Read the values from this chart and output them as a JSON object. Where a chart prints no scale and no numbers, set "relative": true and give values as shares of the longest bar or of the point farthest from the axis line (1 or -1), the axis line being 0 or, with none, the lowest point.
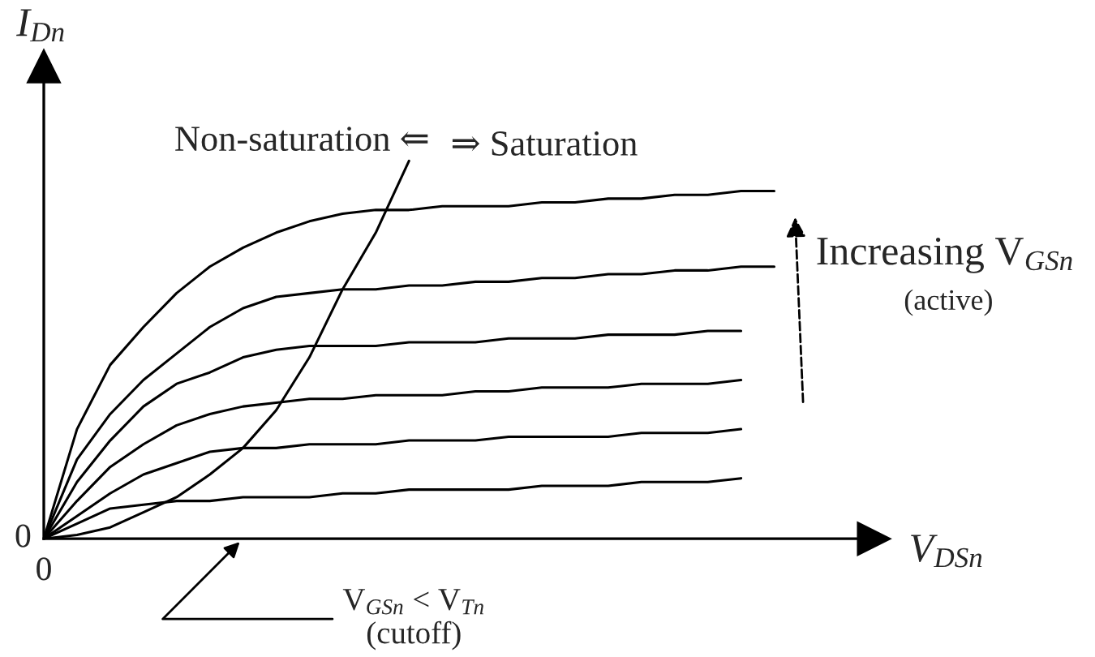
{
  "chart_data": {
    "type": "line",
    "relative": true,
    "xlabel": "V$_{DSn}$",
    "ylabel": "I$_{Dn}$",
    "legend": false,
    "marker": "none",
    "line_style": "solid",
    "categories": [
      null,
      null,
      null,
      null,
      null,
      null,
      null,
      null,
      null,
      null,
      null,
      null,
      null,
      null,
      null,
      null,
      null,
      null,
      null,
      null,
      null,
      null,
      null
    ],
    "series": [
      {
        "color": "#000000",
        "values": [
          0,
          0.29,
          0.46,
          0.56,
          0.65,
          0.72,
          0.77,
          0.81,
          0.84,
          0.86,
          0.87,
          0.87,
          0.88,
          0.88,
          0.88,
          0.89,
          0.89,
          0.9,
          0.9,
          0.91,
          0.91,
          0.92,
          0.92
        ]
      },
      {
        "color": "#000000",
        "values": [
          0,
          0.21,
          0.33,
          0.42,
          0.49,
          0.56,
          0.61,
          0.64,
          0.65,
          0.66,
          0.66,
          0.67,
          0.67,
          0.68,
          0.68,
          0.69,
          0.69,
          0.7,
          0.7,
          0.71,
          0.71,
          0.72,
          0.72
        ]
      },
      {
        "color": "#000000",
        "values": [
          0,
          0.15,
          0.26,
          0.35,
          0.41,
          0.44,
          0.48,
          0.5,
          0.51,
          0.51,
          0.51,
          0.52,
          0.52,
          0.52,
          0.53,
          0.53,
          0.53,
          0.54,
          0.54,
          0.54,
          0.55,
          0.55,
          null
        ]
      },
      {
        "color": "#000000",
        "values": [
          0,
          0.1,
          0.19,
          0.25,
          0.3,
          0.33,
          0.35,
          0.36,
          0.37,
          0.37,
          0.38,
          0.38,
          0.38,
          0.39,
          0.39,
          0.4,
          0.4,
          0.4,
          0.41,
          0.41,
          0.41,
          0.42,
          null
        ]
      },
      {
        "color": "#000000",
        "values": [
          0,
          0.06,
          0.12,
          0.17,
          0.2,
          0.23,
          0.24,
          0.24,
          0.25,
          0.25,
          0.25,
          0.26,
          0.26,
          0.26,
          0.27,
          0.27,
          0.27,
          0.27,
          0.28,
          0.28,
          0.28,
          0.29,
          null
        ]
      },
      {
        "color": "#000000",
        "values": [
          0,
          0.04,
          0.08,
          0.09,
          0.1,
          0.1,
          0.11,
          0.11,
          0.11,
          0.12,
          0.12,
          0.13,
          0.13,
          0.13,
          0.13,
          0.14,
          0.14,
          0.14,
          0.15,
          0.15,
          0.15,
          0.16,
          null
        ]
      },
      {
        "color": "#000000",
        "values": [
          0,
          0.01,
          0.03,
          0.07,
          0.11,
          0.17,
          0.24,
          0.34,
          0.48,
          0.66,
          0.81,
          1,
          null,
          null,
          null,
          null,
          null,
          null,
          null,
          null,
          null,
          null,
          null
        ]
      }
    ],
    "annotations": [
      "0",
      "0",
      "Non-saturation ⇐",
      "⇒ Saturation",
      "Increasing V$_{GSn}$",
      "(active)",
      "V$_{GSn}$ < V$_{Tn}$\n(cutoff)"
    ]
  }
}
